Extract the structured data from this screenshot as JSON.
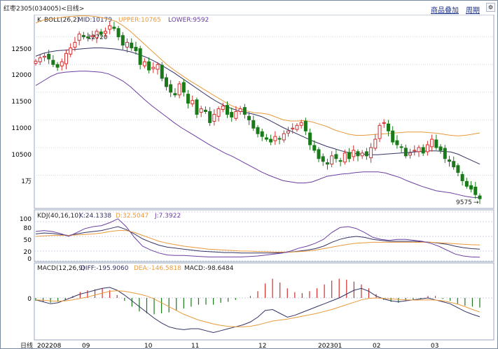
{
  "window": {
    "title": "红枣2305(034005)<日线>"
  },
  "toolbar": {
    "add_product_label": "商品叠加",
    "cycle_label": "周期",
    "settings_icon": "gear-icon"
  },
  "colors": {
    "up": "#d32f2f",
    "down": "#1a7a1a",
    "mid": "#333366",
    "upper": "#e89a3c",
    "lower": "#6a3fa0",
    "k": "#333366",
    "d": "#e89a3c",
    "j": "#6a3fa0",
    "diff": "#333366",
    "dea": "#e89a3c",
    "grid": "#cfd6e4"
  },
  "price_panel": {
    "indicator_label": "K",
    "boll_label": "BOLL(26,2)",
    "mid_label": "MID:10179",
    "upper_label": "UPPER:10765",
    "lower_label": "LOWER:9592",
    "y_ticks": [
      "12500",
      "12000",
      "11500",
      "11000",
      "10500",
      "1万"
    ],
    "high_marker": "12720",
    "low_marker": "9575"
  },
  "kdj_panel": {
    "name_label": "KDJ(40,16,10)",
    "k_label": "K:24.1338",
    "d_label": "D:32.5047",
    "j_label": "J:7.3922",
    "y_ticks": [
      "100",
      "80",
      "50",
      "20",
      "0"
    ]
  },
  "macd_panel": {
    "name_label": "MACD(12,26,9)",
    "diff_label": "DIFF:-195.9060",
    "dea_label": "DEA:-146.5818",
    "macd_label": "MACD:-98.6484",
    "y_ticks": [
      "0"
    ]
  },
  "x_axis": {
    "period_label": "日线",
    "ticks": [
      "202208",
      "09",
      "10",
      "11",
      "12",
      "202301",
      "02",
      "03"
    ]
  },
  "chart_data": {
    "type": "candlestick",
    "x_ticks": [
      "202208",
      "09",
      "10",
      "11",
      "12",
      "202301",
      "02",
      "03"
    ],
    "price": {
      "ylim": [
        9400,
        12900
      ],
      "ticks": [
        10000,
        10500,
        11000,
        11500,
        12000,
        12500
      ],
      "high": 12720,
      "low": 9575,
      "close_series": [
        12060,
        12120,
        12150,
        12100,
        12000,
        11950,
        12050,
        12200,
        12300,
        12400,
        12550,
        12500,
        12480,
        12520,
        12600,
        12550,
        12600,
        12700,
        12650,
        12500,
        12350,
        12400,
        12300,
        12250,
        12000,
        12050,
        11900,
        11950,
        12000,
        11750,
        11600,
        11500,
        11450,
        11650,
        11500,
        11300,
        11350,
        11100,
        11200,
        11150,
        10950,
        11100,
        11200,
        11250,
        11100,
        11050,
        11150,
        11200,
        11100,
        11000,
        10850,
        10750,
        10700,
        10650,
        10600,
        10700,
        10650,
        10750,
        10800,
        10850,
        10900,
        10950,
        10800,
        10550,
        10450,
        10300,
        10250,
        10200,
        10350,
        10300,
        10250,
        10400,
        10300,
        10450,
        10350,
        10400,
        10350,
        10500,
        10650,
        10900,
        10950,
        10800,
        10600,
        10550,
        10500,
        10350,
        10400,
        10450,
        10500,
        10400,
        10550,
        10650,
        10500,
        10450,
        10300,
        10250,
        10150,
        10050,
        9900,
        9800,
        9750,
        9650,
        9575
      ],
      "mid": [
        12150,
        12200,
        12230,
        12250,
        12260,
        12270,
        12280,
        12290,
        12300,
        12300,
        12290,
        12280,
        12260,
        12230,
        12190,
        12140,
        12080,
        12010,
        11930,
        11850,
        11760,
        11670,
        11580,
        11490,
        11400,
        11320,
        11250,
        11200,
        11160,
        11130,
        11100,
        11060,
        11000,
        10930,
        10860,
        10800,
        10740,
        10680,
        10620,
        10570,
        10520,
        10480,
        10440,
        10410,
        10390,
        10380,
        10370,
        10370,
        10380,
        10390,
        10400,
        10410,
        10420,
        10430,
        10440,
        10440,
        10430,
        10420,
        10380,
        10320,
        10260,
        10200
      ],
      "upper": [
        12750,
        12800,
        12820,
        12840,
        12860,
        12870,
        12880,
        12880,
        12870,
        12850,
        12820,
        12780,
        12700,
        12600,
        12480,
        12360,
        12240,
        12120,
        12000,
        11900,
        11810,
        11720,
        11640,
        11560,
        11480,
        11400,
        11320,
        11250,
        11200,
        11160,
        11130,
        11120,
        11100,
        11050,
        11000,
        10980,
        10980,
        10990,
        10960,
        10920,
        10880,
        10820,
        10780,
        10740,
        10720,
        10720,
        10730,
        10740,
        10750,
        10760,
        10770,
        10780,
        10780,
        10780,
        10770,
        10760,
        10740,
        10720,
        10710,
        10720,
        10740,
        10765
      ],
      "lower": [
        11620,
        11700,
        11780,
        11840,
        11860,
        11870,
        11880,
        11880,
        11870,
        11860,
        11830,
        11770,
        11700,
        11600,
        11480,
        11360,
        11250,
        11150,
        11050,
        10950,
        10860,
        10780,
        10700,
        10620,
        10540,
        10470,
        10400,
        10340,
        10270,
        10200,
        10130,
        10060,
        10000,
        9950,
        9900,
        9880,
        9860,
        9860,
        9880,
        9930,
        9980,
        10000,
        10020,
        10030,
        10050,
        10060,
        10060,
        10060,
        10040,
        10000,
        9960,
        9900,
        9850,
        9800,
        9760,
        9720,
        9700,
        9680,
        9650,
        9620,
        9600,
        9592
      ]
    },
    "kdj": {
      "ylim": [
        0,
        100
      ],
      "ticks": [
        0,
        20,
        50,
        80,
        100
      ],
      "k": [
        55,
        57,
        56,
        54,
        52,
        55,
        58,
        60,
        62,
        66,
        70,
        64,
        55,
        45,
        38,
        32,
        28,
        26,
        24,
        22,
        20,
        19,
        18,
        17,
        17,
        16,
        16,
        16,
        16,
        16,
        17,
        18,
        20,
        22,
        25,
        30,
        38,
        44,
        48,
        50,
        48,
        44,
        42,
        40,
        40,
        40,
        40,
        39,
        38,
        36,
        34,
        30,
        27,
        25,
        24
      ],
      "d": [
        50,
        51,
        52,
        52,
        52,
        53,
        54,
        55,
        57,
        60,
        62,
        62,
        58,
        52,
        46,
        40,
        36,
        33,
        30,
        28,
        26,
        24,
        23,
        22,
        21,
        20,
        20,
        19,
        19,
        18,
        18,
        18,
        19,
        20,
        22,
        25,
        28,
        31,
        34,
        36,
        37,
        38,
        38,
        38,
        38,
        38,
        38,
        38,
        38,
        37,
        36,
        35,
        34,
        33,
        32.5
      ],
      "j": [
        60,
        62,
        60,
        56,
        50,
        58,
        66,
        70,
        72,
        78,
        86,
        70,
        48,
        30,
        22,
        16,
        12,
        11,
        11,
        10,
        9,
        8,
        8,
        8,
        8,
        8,
        9,
        10,
        12,
        14,
        16,
        20,
        26,
        30,
        36,
        44,
        58,
        68,
        70,
        66,
        58,
        48,
        44,
        42,
        44,
        44,
        42,
        40,
        36,
        30,
        22,
        14,
        10,
        8,
        7.39
      ],
      "k_value": 24.1338,
      "d_value": 32.5047,
      "j_value": 7.3922
    },
    "macd": {
      "ylim": [
        -400,
        200
      ],
      "ticks": [
        0
      ],
      "diff": [
        -20,
        -40,
        -60,
        -50,
        -20,
        10,
        40,
        60,
        80,
        100,
        110,
        80,
        30,
        -30,
        -90,
        -150,
        -210,
        -260,
        -300,
        -320,
        -330,
        -320,
        -320,
        -340,
        -360,
        -340,
        -320,
        -300,
        -280,
        -250,
        -200,
        -130,
        -120,
        -160,
        -200,
        -180,
        -150,
        -120,
        -90,
        -60,
        -30,
        0,
        40,
        80,
        100,
        70,
        20,
        -10,
        -30,
        -40,
        -30,
        -20,
        -10,
        0,
        -20,
        -40,
        -60,
        -100,
        -140,
        -170,
        -196
      ],
      "dea": [
        -20,
        -25,
        -30,
        -35,
        -30,
        -20,
        -5,
        10,
        30,
        50,
        70,
        75,
        70,
        55,
        40,
        20,
        -10,
        -50,
        -90,
        -130,
        -170,
        -200,
        -230,
        -250,
        -270,
        -285,
        -295,
        -300,
        -300,
        -295,
        -280,
        -260,
        -240,
        -230,
        -220,
        -205,
        -190,
        -175,
        -160,
        -140,
        -120,
        -95,
        -70,
        -45,
        -20,
        -5,
        0,
        -5,
        -10,
        -15,
        -20,
        -22,
        -22,
        -20,
        -22,
        -30,
        -45,
        -65,
        -90,
        -120,
        -147
      ],
      "hist": [
        -30,
        -40,
        -50,
        -40,
        -20,
        20,
        60,
        80,
        90,
        100,
        80,
        30,
        -30,
        -90,
        -140,
        -160,
        -170,
        -160,
        -150,
        -130,
        -110,
        -90,
        -70,
        -70,
        -70,
        -50,
        -40,
        -20,
        0,
        20,
        70,
        150,
        200,
        160,
        100,
        60,
        50,
        70,
        100,
        140,
        180,
        200,
        190,
        170,
        140,
        100,
        40,
        -20,
        -40,
        -50,
        -30,
        -20,
        -10,
        20,
        20,
        -10,
        -30,
        -60,
        -80,
        -90,
        -99
      ],
      "diff_value": -195.906,
      "dea_value": -146.5818,
      "macd_value": -98.6484
    }
  }
}
